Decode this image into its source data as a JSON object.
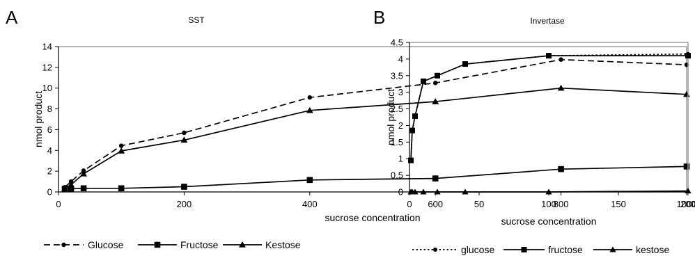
{
  "panels": [
    {
      "letter": "A"
    },
    {
      "letter": "B"
    }
  ],
  "chart_data": [
    {
      "type": "line",
      "title": "SST",
      "xlabel": "sucrose concentration",
      "ylabel": "nmol product",
      "xlim": [
        0,
        1000
      ],
      "ylim": [
        0,
        14
      ],
      "xticks": [
        0,
        200,
        400,
        600,
        800,
        1000
      ],
      "yticks": [
        0,
        2,
        4,
        6,
        8,
        10,
        12,
        14
      ],
      "grid": false,
      "legend": "bottom",
      "series": [
        {
          "name": "Glucose",
          "style": "dashed",
          "marker": "circle",
          "x": [
            10,
            20,
            40,
            100,
            200,
            400,
            600,
            800,
            1000
          ],
          "y": [
            0.45,
            1.0,
            2.05,
            4.45,
            5.7,
            9.1,
            10.5,
            12.75,
            12.25
          ]
        },
        {
          "name": "Fructose",
          "style": "solid",
          "marker": "square",
          "x": [
            10,
            20,
            40,
            100,
            200,
            400,
            600,
            800,
            1000
          ],
          "y": [
            0.3,
            0.3,
            0.35,
            0.35,
            0.5,
            1.15,
            1.3,
            2.2,
            2.45
          ]
        },
        {
          "name": "Kestose",
          "style": "solid",
          "marker": "triangle",
          "x": [
            10,
            20,
            40,
            100,
            200,
            400,
            600,
            800,
            1000
          ],
          "y": [
            0.3,
            0.7,
            1.75,
            3.95,
            5.0,
            7.85,
            8.7,
            10.0,
            9.4
          ]
        }
      ]
    },
    {
      "type": "line",
      "title": "Invertase",
      "xlabel": "sucrose concentration",
      "ylabel": "nmol product",
      "xlim": [
        0,
        200
      ],
      "ylim": [
        0,
        4.5
      ],
      "xticks": [
        0,
        50,
        100,
        150,
        200
      ],
      "yticks": [
        0,
        0.5,
        1,
        1.5,
        2,
        2.5,
        3,
        3.5,
        4,
        4.5
      ],
      "grid": false,
      "legend": "bottom",
      "series": [
        {
          "name": "glucose",
          "style": "dotted",
          "marker": "circle",
          "x": [
            1,
            2,
            4,
            10,
            20,
            40,
            100,
            200
          ],
          "y": [
            0.95,
            1.85,
            2.28,
            3.33,
            3.5,
            3.85,
            4.1,
            4.15
          ]
        },
        {
          "name": "fructose",
          "style": "solid",
          "marker": "square",
          "x": [
            1,
            2,
            4,
            10,
            20,
            40,
            100,
            200
          ],
          "y": [
            0.95,
            1.85,
            2.28,
            3.33,
            3.5,
            3.85,
            4.1,
            4.1
          ]
        },
        {
          "name": "kestose",
          "style": "solid",
          "marker": "triangle",
          "x": [
            1,
            2,
            4,
            10,
            20,
            40,
            100,
            200
          ],
          "y": [
            0,
            0,
            0,
            0,
            0,
            0,
            0,
            0.03
          ]
        }
      ]
    }
  ]
}
